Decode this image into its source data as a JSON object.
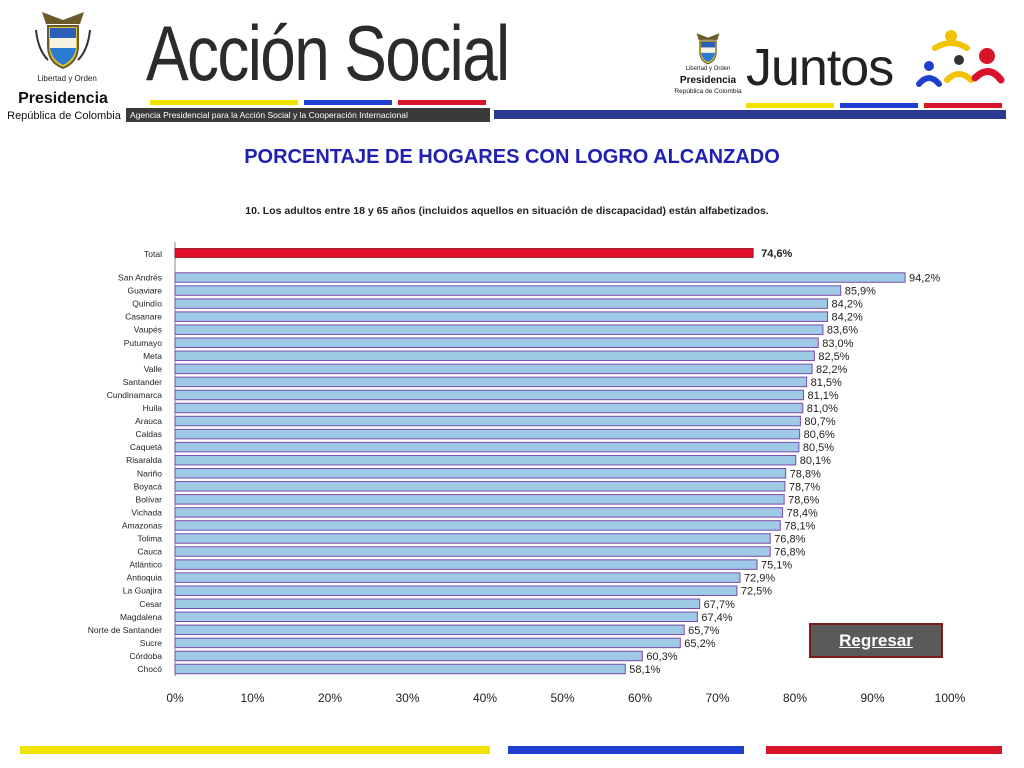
{
  "header": {
    "presidencia_motto": "Libertad y Orden",
    "presidencia_title": "Presidencia",
    "presidencia_sub": "República de Colombia",
    "brand_name": "Acción Social",
    "brand_subtitle": "Agencia Presidencial para la Acción Social y la Cooperación Internacional",
    "juntos_motto": "Libertad y Orden",
    "juntos_presidencia": "Presidencia",
    "juntos_republica": "República de Colombia",
    "juntos_name": "Juntos"
  },
  "page_title": "PORCENTAJE DE HOGARES CON LOGRO ALCANZADO",
  "back_button": "Regresar",
  "colors": {
    "yellow": "#f2e200",
    "blue": "#1f3fd0",
    "red": "#d8142b",
    "bar_fill": "#9ecae6",
    "bar_border": "#7a4aa8",
    "total_bar": "#e0102a",
    "title_blue": "#1f1fb4"
  },
  "chart_data": {
    "type": "bar",
    "orientation": "horizontal",
    "title": "10. Los adultos entre 18 y 65 años (incluidos aquellos en situación de discapacidad) están alfabetizados.",
    "xlim": [
      0,
      100
    ],
    "x_ticks": [
      "0%",
      "10%",
      "20%",
      "30%",
      "40%",
      "50%",
      "60%",
      "70%",
      "80%",
      "90%",
      "100%"
    ],
    "grid": false,
    "total": {
      "label": "Total",
      "value": 74.6,
      "value_label": "74,6%"
    },
    "categories": [
      "San Andrés",
      "Guaviare",
      "Quindío",
      "Casanare",
      "Vaupés",
      "Putumayo",
      "Meta",
      "Valle",
      "Santander",
      "Cundinamarca",
      "Huila",
      "Arauca",
      "Caldas",
      "Caquetá",
      "Risaralda",
      "Nariño",
      "Boyacá",
      "Bolívar",
      "Vichada",
      "Amazonas",
      "Tolima",
      "Cauca",
      "Atlántico",
      "Antioquia",
      "La Guajira",
      "Cesar",
      "Magdalena",
      "Norte de Santander",
      "Sucre",
      "Córdoba",
      "Chocó"
    ],
    "values": [
      94.2,
      85.9,
      84.2,
      84.2,
      83.6,
      83.0,
      82.5,
      82.2,
      81.5,
      81.1,
      81.0,
      80.7,
      80.6,
      80.5,
      80.1,
      78.8,
      78.7,
      78.6,
      78.4,
      78.1,
      76.8,
      76.8,
      75.1,
      72.9,
      72.5,
      67.7,
      67.4,
      65.7,
      65.2,
      60.3,
      58.1
    ],
    "value_labels": [
      "94,2%",
      "85,9%",
      "84,2%",
      "84,2%",
      "83,6%",
      "83,0%",
      "82,5%",
      "82,2%",
      "81,5%",
      "81,1%",
      "81,0%",
      "80,7%",
      "80,6%",
      "80,5%",
      "80,1%",
      "78,8%",
      "78,7%",
      "78,6%",
      "78,4%",
      "78,1%",
      "76,8%",
      "76,8%",
      "75,1%",
      "72,9%",
      "72,5%",
      "67,7%",
      "67,4%",
      "65,7%",
      "65,2%",
      "60,3%",
      "58,1%"
    ]
  }
}
